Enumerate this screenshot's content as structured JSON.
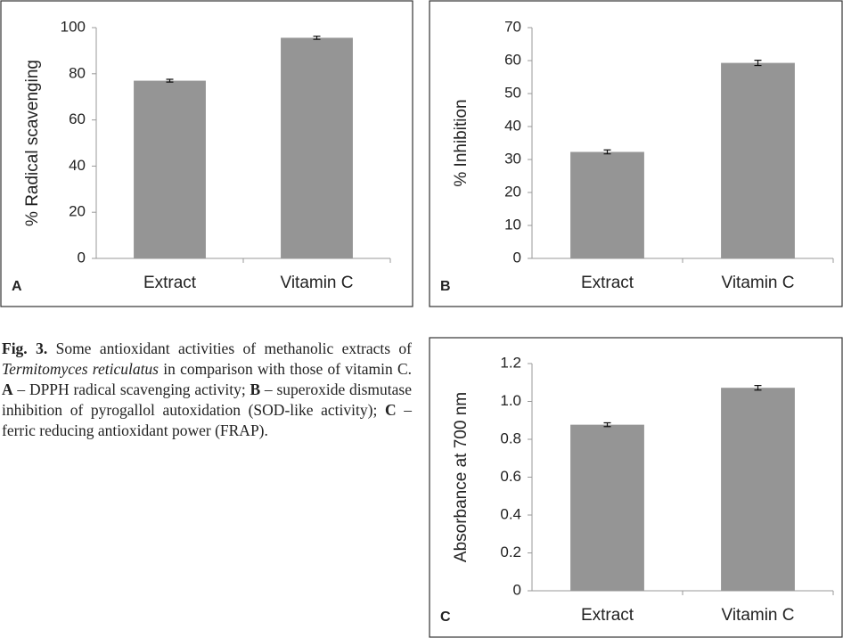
{
  "chart_data": [
    {
      "type": "bar",
      "panel": "A",
      "ylabel": "% Radical scavenging",
      "categories": [
        "Extract",
        "Vitamin C"
      ],
      "values": [
        77,
        95.6
      ],
      "errors": [
        0.6,
        0.7
      ],
      "color": "#959595",
      "ylim": [
        0,
        100
      ],
      "yticks": [
        0,
        20,
        40,
        60,
        80,
        100
      ]
    },
    {
      "type": "bar",
      "panel": "B",
      "ylabel": "% Inhibition",
      "categories": [
        "Extract",
        "Vitamin C"
      ],
      "values": [
        32.3,
        59.3
      ],
      "errors": [
        0.6,
        0.8
      ],
      "color": "#959595",
      "ylim": [
        0,
        70
      ],
      "yticks": [
        0,
        10,
        20,
        30,
        40,
        50,
        60,
        70
      ]
    },
    {
      "type": "bar",
      "panel": "C",
      "ylabel": "Absorbance at 700 nm",
      "categories": [
        "Extract",
        "Vitamin C"
      ],
      "values": [
        0.877,
        1.072
      ],
      "errors": [
        0.01,
        0.012
      ],
      "color": "#959595",
      "ylim": [
        0,
        1.2
      ],
      "yticks": [
        0,
        0.2,
        0.4,
        0.6,
        0.8,
        {
          "value": 1,
          "label": "1.0"
        },
        1.2
      ]
    }
  ],
  "caption": [
    "Fig. 3.",
    " Some antioxidant activities of methanolic extracts of ",
    "Termitomyces reticulatus",
    " in comparison with those of vitamin C. ",
    "A",
    " – DPPH radical scavenging activity; ",
    "B",
    " – superoxide dismutase inhibition of pyrogallol autoxidation (SOD-like activity); ",
    "C",
    " – ferric reducing antioxidant power (FRAP)."
  ]
}
